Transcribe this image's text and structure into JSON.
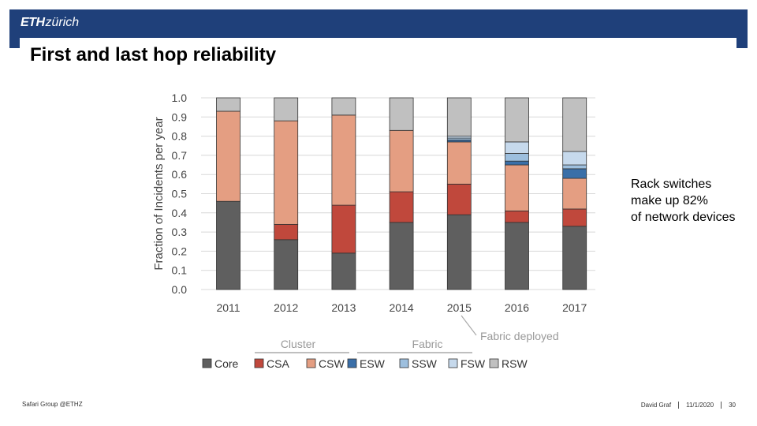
{
  "header": {
    "logo_bold": "ETH",
    "logo_rest": "zürich",
    "bar_color": "#1f407a"
  },
  "slide": {
    "title": "First and last hop reliability",
    "side_note_lines": [
      "Rack switches",
      "make up 82%",
      "of network devices"
    ]
  },
  "footer": {
    "left": "Safari Group @ETHZ",
    "author": "David Graf",
    "date": "11/1/2020",
    "page": "30"
  },
  "chart_data": {
    "type": "bar",
    "stacked": true,
    "ylabel": "Fraction of Incidents per year",
    "ylim": [
      0,
      1.0
    ],
    "yticks": [
      "0.0",
      "0.1",
      "0.2",
      "0.3",
      "0.4",
      "0.5",
      "0.6",
      "0.7",
      "0.8",
      "0.9",
      "1.0"
    ],
    "grid": true,
    "categories": [
      "2011",
      "2012",
      "2013",
      "2014",
      "2015",
      "2016",
      "2017"
    ],
    "series": [
      {
        "name": "Core",
        "color": "#5f5f5f",
        "values": [
          0.46,
          0.26,
          0.19,
          0.35,
          0.39,
          0.35,
          0.33
        ]
      },
      {
        "name": "CSA",
        "color": "#c0483c",
        "values": [
          0.0,
          0.08,
          0.25,
          0.16,
          0.16,
          0.06,
          0.09
        ]
      },
      {
        "name": "CSW",
        "color": "#e49e82",
        "values": [
          0.47,
          0.54,
          0.47,
          0.32,
          0.22,
          0.24,
          0.16
        ]
      },
      {
        "name": "ESW",
        "color": "#3a6fa8",
        "values": [
          0.0,
          0.0,
          0.0,
          0.0,
          0.01,
          0.02,
          0.05
        ]
      },
      {
        "name": "SSW",
        "color": "#9dbfde",
        "values": [
          0.0,
          0.0,
          0.0,
          0.0,
          0.01,
          0.04,
          0.02
        ]
      },
      {
        "name": "FSW",
        "color": "#c6d9ec",
        "values": [
          0.0,
          0.0,
          0.0,
          0.0,
          0.01,
          0.06,
          0.07
        ]
      },
      {
        "name": "RSW",
        "color": "#c0c0c0",
        "values": [
          0.07,
          0.12,
          0.09,
          0.17,
          0.2,
          0.23,
          0.28
        ]
      }
    ],
    "annotations": {
      "group_cluster": "Cluster",
      "group_fabric": "Fabric",
      "callout": "Fabric deployed"
    },
    "legend_position": "bottom"
  }
}
